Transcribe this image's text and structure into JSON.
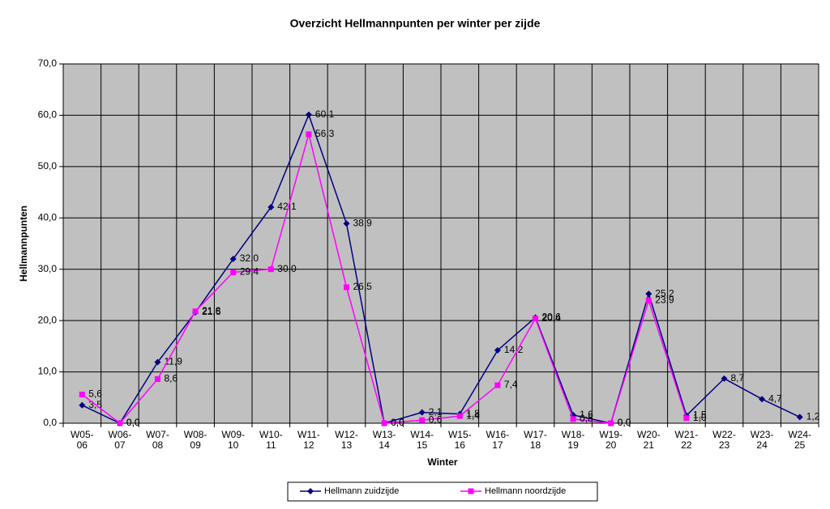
{
  "chart_data": {
    "type": "line",
    "title": "Overzicht Hellmannpunten per winter per zijde",
    "x_label": "Winter",
    "y_label": "Hellmannpunten",
    "categories": [
      "W05-06",
      "W06-07",
      "W07-08",
      "W08-09",
      "W09-10",
      "W10-11",
      "W11-12",
      "W12-13",
      "W13-14",
      "W14-15",
      "W15-16",
      "W16-17",
      "W17-18",
      "W18-19",
      "W19-20",
      "W20-21",
      "W21-22",
      "W22-23",
      "W23-24",
      "W24-25"
    ],
    "series": [
      {
        "name": "Hellmann zuidzijde",
        "color": "#000080",
        "marker": "diamond",
        "values": [
          3.5,
          0.0,
          11.9,
          21.6,
          32.0,
          42.1,
          60.1,
          38.9,
          0.0,
          2.1,
          1.8,
          14.2,
          20.6,
          1.6,
          0.0,
          25.2,
          1.5,
          8.7,
          4.7,
          1.2
        ],
        "value_labels": [
          "3,5",
          "0,0",
          "11,9",
          "21,6",
          "32,0",
          "42,1",
          "60,1",
          "38,9",
          "0,0",
          "2,1",
          "1,8",
          "14,2",
          "20,6",
          "1,6",
          "0,0",
          "25,2",
          "1,5",
          "8,7",
          "4,7",
          "1,2"
        ]
      },
      {
        "name": "Hellmann noordzijde",
        "color": "#ff00ff",
        "marker": "square",
        "values": [
          5.6,
          0.0,
          8.6,
          21.8,
          29.4,
          30.0,
          56.3,
          26.5,
          0.0,
          0.6,
          1.4,
          7.4,
          20.4,
          0.8,
          0.0,
          23.9,
          1.0,
          null,
          null,
          null
        ],
        "value_labels": [
          "5,6",
          "0,0",
          "8,6",
          "21,8",
          "29,4",
          "30,0",
          "56,3",
          "26,5",
          "0,0",
          "0,6",
          "1,4",
          "7,4",
          "20,4",
          "0,8",
          "0,0",
          "23,9",
          "1,0",
          null,
          null,
          null
        ]
      }
    ],
    "ylim": [
      0,
      70
    ],
    "yticks": [
      {
        "value": 0,
        "label": "0,0"
      },
      {
        "value": 10,
        "label": "10,0"
      },
      {
        "value": 20,
        "label": "20,0"
      },
      {
        "value": 30,
        "label": "30,0"
      },
      {
        "value": 40,
        "label": "40,0"
      },
      {
        "value": 50,
        "label": "50,0"
      },
      {
        "value": 60,
        "label": "60,0"
      },
      {
        "value": 70,
        "label": "70,0"
      }
    ],
    "grid": true,
    "plot_background": "#c0c0c0",
    "legend": "bottom"
  }
}
